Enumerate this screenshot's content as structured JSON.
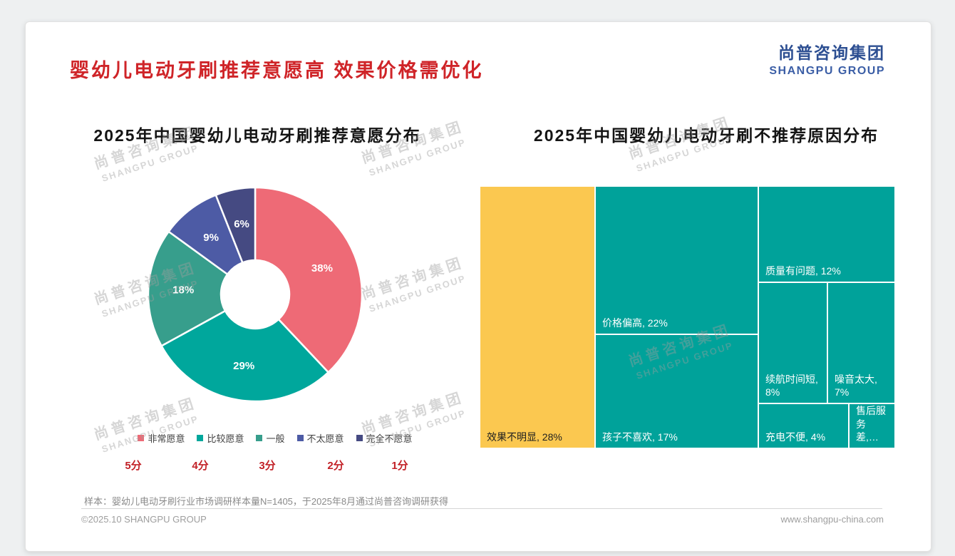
{
  "page": {
    "title": "婴幼儿电动牙刷推荐意愿高 效果价格需优化",
    "logo": {
      "cn": "尚普咨询集团",
      "en": "SHANGPU GROUP"
    },
    "watermark": {
      "cn": "尚普咨询集团",
      "en": "SHANGPU GROUP"
    },
    "sample_note": "样本：婴幼儿电动牙刷行业市场调研样本量N=1405，于2025年8月通过尚普咨询调研获得",
    "footer": {
      "copyright": "©2025.10 SHANGPU GROUP",
      "website": "www.shangpu-china.com"
    },
    "colors": {
      "title_red": "#cf2428",
      "score_red": "#c22127",
      "logo_blue": "#2d4f92",
      "watermark_gray": "#9e9e9e"
    }
  },
  "chart_data": [
    {
      "type": "pie",
      "subtype": "donut",
      "title": "2025年中国婴幼儿电动牙刷推荐意愿分布",
      "categories": [
        "非常愿意",
        "比较愿意",
        "一般",
        "不太愿意",
        "完全不愿意"
      ],
      "values": [
        38,
        29,
        18,
        9,
        6
      ],
      "labels": [
        "38%",
        "29%",
        "18%",
        "9%",
        "6%"
      ],
      "scores": [
        "5分",
        "4分",
        "3分",
        "2分",
        "1分"
      ],
      "colors": [
        "#ee6a76",
        "#00a79c",
        "#379e8c",
        "#4d5ba5",
        "#454a82"
      ],
      "legend_position": "bottom",
      "start_angle_deg": 0,
      "direction": "clockwise"
    },
    {
      "type": "treemap",
      "title": "2025年中国婴幼儿电动牙刷不推荐原因分布",
      "cells": [
        {
          "label": "效果不明显",
          "value": 28,
          "display": "效果不明显, 28%",
          "color": "#fbc850",
          "text_color": "#1f1f1f"
        },
        {
          "label": "价格偏高",
          "value": 22,
          "display": "价格偏高, 22%",
          "color": "#00a29a",
          "text_color": "#ffffff"
        },
        {
          "label": "孩子不喜欢",
          "value": 17,
          "display": "孩子不喜欢, 17%",
          "color": "#00a29a",
          "text_color": "#ffffff"
        },
        {
          "label": "质量有问题",
          "value": 12,
          "display": "质量有问题, 12%",
          "color": "#00a29a",
          "text_color": "#ffffff"
        },
        {
          "label": "续航时间短",
          "value": 8,
          "display": "续航时间短, 8%",
          "color": "#00a29a",
          "text_color": "#ffffff"
        },
        {
          "label": "噪音太大",
          "value": 7,
          "display": "噪音太大, 7%",
          "color": "#00a29a",
          "text_color": "#ffffff"
        },
        {
          "label": "充电不便",
          "value": 4,
          "display": "充电不便, 4%",
          "color": "#00a29a",
          "text_color": "#ffffff"
        },
        {
          "label": "售后服务差",
          "display": "售后服务差,…",
          "color": "#00a29a",
          "text_color": "#ffffff"
        }
      ]
    }
  ]
}
